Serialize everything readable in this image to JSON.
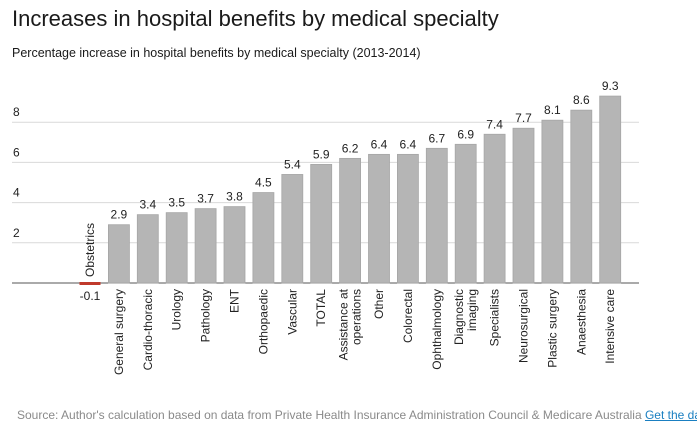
{
  "title": "Increases in hospital benefits by medical specialty",
  "subtitle": "Percentage increase in hospital benefits by medical specialty (2013-2014)",
  "footer": {
    "source_text": "Source: Author's calculation based on data from Private Health Insurance Administration Council & Medicare Australia",
    "link_label": "Get the data"
  },
  "colors": {
    "bar": "#b5b5b5",
    "bar_stroke": "#a6a6a6",
    "negative_bar": "#c0392b",
    "grid": "#d9d9d9",
    "axis": "#555555"
  },
  "chart_data": {
    "type": "bar",
    "title": "Increases in hospital benefits by medical specialty",
    "subtitle": "Percentage increase in hospital benefits by medical specialty (2013-2014)",
    "xlabel": "",
    "ylabel": "",
    "ylim": [
      -0.1,
      9.3
    ],
    "yticks": [
      2,
      4,
      6,
      8
    ],
    "grid": true,
    "categories": [
      [
        "Obstetrics"
      ],
      [
        "General surgery"
      ],
      [
        "Cardio-thoracic"
      ],
      [
        "Urology"
      ],
      [
        "Pathology"
      ],
      [
        "ENT"
      ],
      [
        "Orthopaedic"
      ],
      [
        "Vascular"
      ],
      [
        "TOTAL"
      ],
      [
        "Assistance at",
        "operations"
      ],
      [
        "Other"
      ],
      [
        "Colorectal"
      ],
      [
        "Ophthalmology"
      ],
      [
        "Diagnostic",
        "imaging"
      ],
      [
        "Specialists"
      ],
      [
        "Neurosurgical"
      ],
      [
        "Plastic surgery"
      ],
      [
        "Anaesthesia"
      ],
      [
        "Intensive care"
      ]
    ],
    "values": [
      -0.1,
      2.9,
      3.4,
      3.5,
      3.7,
      3.8,
      4.5,
      5.4,
      5.9,
      6.2,
      6.4,
      6.4,
      6.7,
      6.9,
      7.4,
      7.7,
      8.1,
      8.6,
      9.3
    ],
    "value_labels": [
      "-0.1",
      "2.9",
      "3.4",
      "3.5",
      "3.7",
      "3.8",
      "4.5",
      "5.4",
      "5.9",
      "6.2",
      "6.4",
      "6.4",
      "6.7",
      "6.9",
      "7.4",
      "7.7",
      "8.1",
      "8.6",
      "9.3"
    ]
  }
}
